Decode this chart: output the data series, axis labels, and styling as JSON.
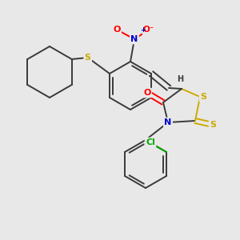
{
  "background_color": "#e8e8e8",
  "bond_color": "#3a3a3a",
  "atom_colors": {
    "O": "#ff0000",
    "N": "#0000cc",
    "S": "#ccaa00",
    "Cl": "#00aa00",
    "C": "#3a3a3a",
    "H": "#3a3a3a"
  },
  "figsize": [
    3.0,
    3.0
  ],
  "dpi": 100
}
